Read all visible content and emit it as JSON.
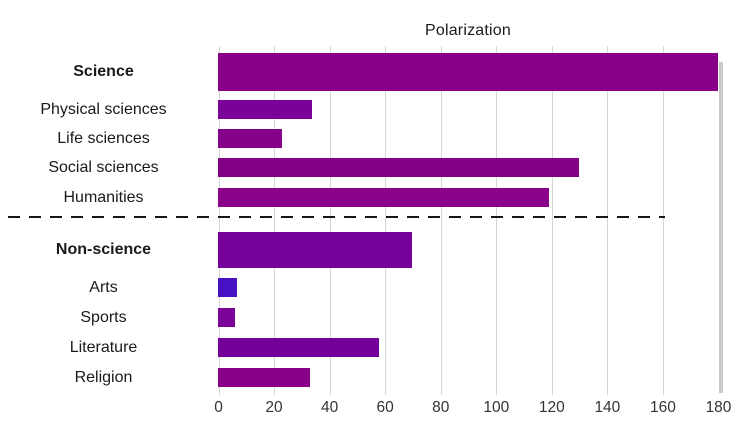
{
  "title": "Polarization",
  "chart_data": {
    "type": "bar",
    "orientation": "horizontal",
    "title": "Polarization",
    "xlabel": "",
    "ylabel": "",
    "xlim": [
      0,
      180
    ],
    "x_ticks": [
      0,
      20,
      40,
      60,
      80,
      100,
      120,
      140,
      160,
      180
    ],
    "grid": "vertical-light-gray",
    "legend": "none",
    "separator_note": "horizontal dashed line divides science group from non-science group",
    "rows": [
      {
        "label": "Science",
        "value": 180,
        "color": "#870087",
        "header": true,
        "group": "science"
      },
      {
        "label": "Physical sciences",
        "value": 34,
        "color": "#7B0299",
        "header": false,
        "group": "science"
      },
      {
        "label": "Life sciences",
        "value": 23,
        "color": "#850189",
        "header": false,
        "group": "science"
      },
      {
        "label": "Social sciences",
        "value": 130,
        "color": "#820083",
        "header": false,
        "group": "science"
      },
      {
        "label": "Humanities",
        "value": 119,
        "color": "#8A028A",
        "header": false,
        "group": "science"
      },
      {
        "label": "Non-science",
        "value": 70,
        "color": "#770299",
        "header": true,
        "group": "non-science"
      },
      {
        "label": "Arts",
        "value": 7,
        "color": "#4812C4",
        "header": false,
        "group": "non-science"
      },
      {
        "label": "Sports",
        "value": 6,
        "color": "#7B0398",
        "header": false,
        "group": "non-science"
      },
      {
        "label": "Literature",
        "value": 58,
        "color": "#730199",
        "header": false,
        "group": "non-science"
      },
      {
        "label": "Religion",
        "value": 33,
        "color": "#8A0189",
        "header": false,
        "group": "non-science"
      }
    ]
  },
  "colors": {
    "gridline": "#d6d6d6",
    "right_border": "#c9c9c9",
    "label_text": "#1a1a1a",
    "tick_text": "#333333",
    "separator": "#161616",
    "background": "#ffffff"
  }
}
